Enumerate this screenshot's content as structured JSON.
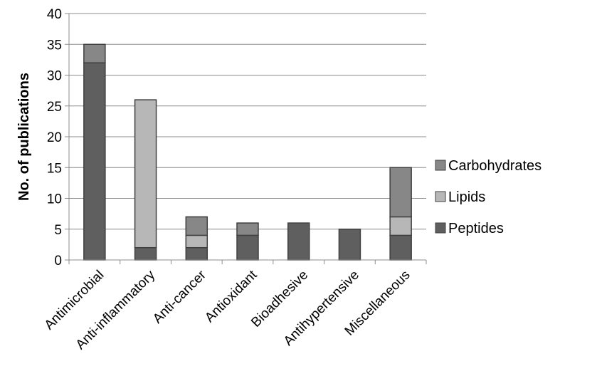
{
  "chart_data": {
    "type": "bar",
    "stacked": true,
    "title": "",
    "xlabel": "",
    "ylabel": "No. of publications",
    "ylim": [
      0,
      40
    ],
    "yticks": [
      0,
      5,
      10,
      15,
      20,
      25,
      30,
      35,
      40
    ],
    "grid": true,
    "legend_position": "right",
    "categories": [
      "Antimicrobial",
      "Anti-inflammatory",
      "Anti-cancer",
      "Antioxidant",
      "Bioadhesive",
      "Antihypertensive",
      "Miscellaneous"
    ],
    "series": [
      {
        "name": "Peptides",
        "color": "#5f5f5f",
        "values": [
          32,
          2,
          2,
          4,
          6,
          5,
          4
        ]
      },
      {
        "name": "Lipids",
        "color": "#b7b7b7",
        "values": [
          0,
          24,
          2,
          0,
          0,
          0,
          3
        ]
      },
      {
        "name": "Carbohydrates",
        "color": "#878787",
        "values": [
          3,
          0,
          3,
          2,
          0,
          0,
          8
        ]
      }
    ],
    "legend_order": [
      "Carbohydrates",
      "Lipids",
      "Peptides"
    ]
  }
}
